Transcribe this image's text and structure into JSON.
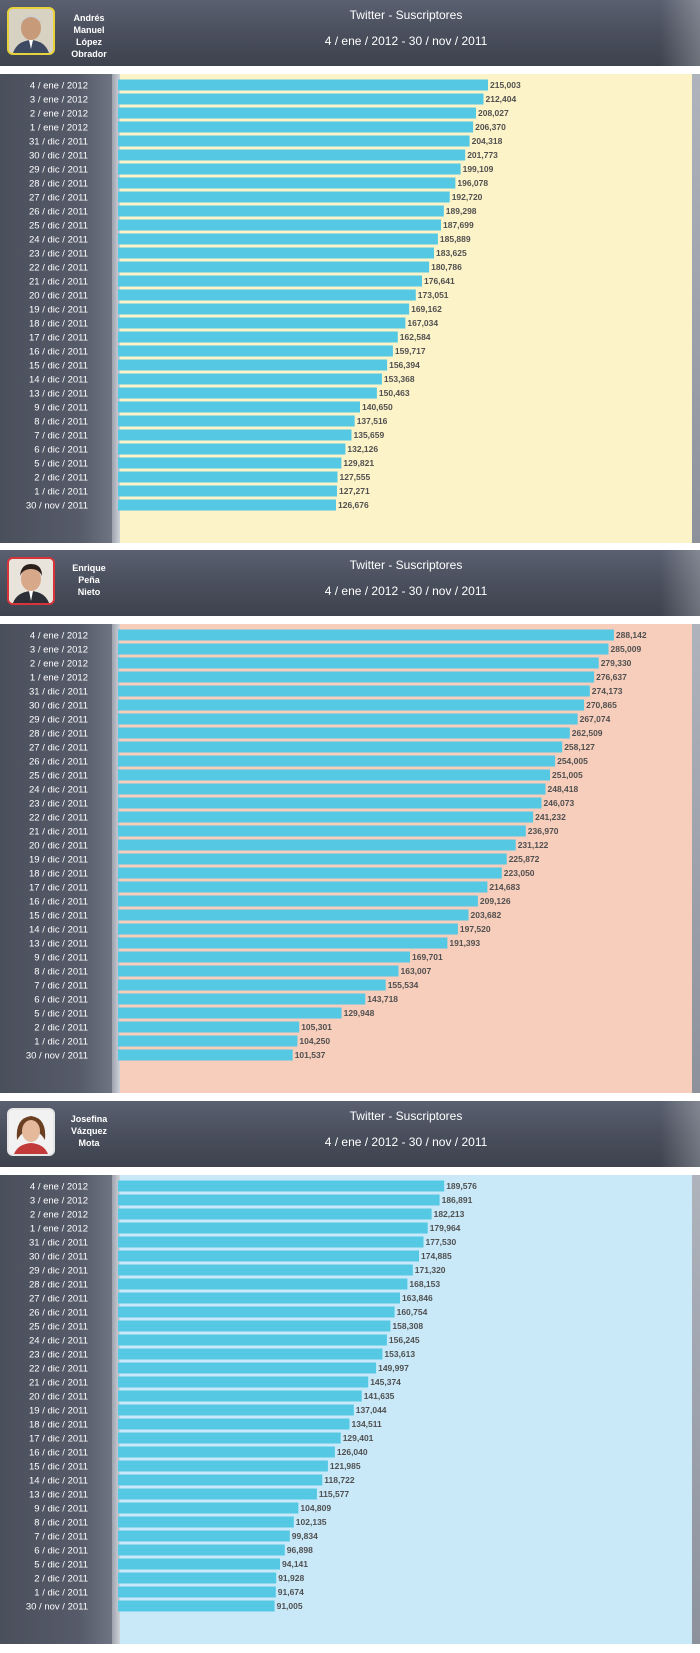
{
  "colors": {
    "bar": "#55c8e3",
    "header_bg": "#4a4f5d"
  },
  "chart_data": [
    {
      "type": "bar",
      "orientation": "horizontal",
      "candidate": "Andrés\nManuel\nLópez\nObrador",
      "title": "Twitter - Suscriptores",
      "subtitle": "4 / ene / 2012   -  30 / nov / 2011",
      "background": "#fdf3c8",
      "avatar_border": "#e8d23a",
      "avatar_icon": "portrait-photo-icon",
      "categories": [
        "4 / ene / 2012",
        "3 / ene / 2012",
        "2 / ene / 2012",
        "1 / ene / 2012",
        "31 / dic / 2011",
        "30 / dic / 2011",
        "29 / dic / 2011",
        "28 / dic / 2011",
        "27 / dic / 2011",
        "26 / dic / 2011",
        "25 / dic / 2011",
        "24 / dic / 2011",
        "23 / dic / 2011",
        "22 / dic / 2011",
        "21 / dic / 2011",
        "20 / dic / 2011",
        "19 / dic / 2011",
        "18 / dic / 2011",
        "17 / dic / 2011",
        "16 / dic / 2011",
        "15 / dic / 2011",
        "14 / dic / 2011",
        "13 / dic / 2011",
        "9 / dic / 2011",
        "8 / dic / 2011",
        "7 / dic / 2011",
        "6 / dic / 2011",
        "5 / dic / 2011",
        "2 / dic / 2011",
        "1 / dic / 2011",
        "30 / nov / 2011"
      ],
      "values": [
        215003,
        212404,
        208027,
        206370,
        204318,
        201773,
        199109,
        196078,
        192720,
        189298,
        187699,
        185889,
        183625,
        180786,
        176641,
        173051,
        169162,
        167034,
        162584,
        159717,
        156394,
        153368,
        150463,
        140650,
        137516,
        135659,
        132126,
        129821,
        127555,
        127271,
        126676
      ],
      "labels": [
        "215,003",
        "212,404",
        "208,027",
        "206,370",
        "204,318",
        "201,773",
        "199,109",
        "196,078",
        "192,720",
        "189,298",
        "187,699",
        "185,889",
        "183,625",
        "180,786",
        "176,641",
        "173,051",
        "169,162",
        "167,034",
        "162,584",
        "159,717",
        "156,394",
        "153,368",
        "150,463",
        "140,650",
        "137,516",
        "135,659",
        "132,126",
        "129,821",
        "127,555",
        "127,271",
        "126,676"
      ]
    },
    {
      "type": "bar",
      "orientation": "horizontal",
      "candidate": "Enrique\nPeña\nNieto",
      "title": "Twitter - Suscriptores",
      "subtitle": "4 / ene / 2012   -  30 / nov / 2011",
      "background": "#f7cdbb",
      "avatar_border": "#d9333a",
      "avatar_icon": "portrait-photo-icon",
      "categories": [
        "4 / ene / 2012",
        "3 / ene / 2012",
        "2 / ene / 2012",
        "1 / ene / 2012",
        "31 / dic / 2011",
        "30 / dic / 2011",
        "29 / dic / 2011",
        "28 / dic / 2011",
        "27 / dic / 2011",
        "26 / dic / 2011",
        "25 / dic / 2011",
        "24 / dic / 2011",
        "23 / dic / 2011",
        "22 / dic / 2011",
        "21 / dic / 2011",
        "20 / dic / 2011",
        "19 / dic / 2011",
        "18 / dic / 2011",
        "17 / dic / 2011",
        "16 / dic / 2011",
        "15 / dic / 2011",
        "14 / dic / 2011",
        "13 / dic / 2011",
        "9 / dic / 2011",
        "8 / dic / 2011",
        "7 / dic / 2011",
        "6 / dic / 2011",
        "5 / dic / 2011",
        "2 / dic / 2011",
        "1 / dic / 2011",
        "30 / nov / 2011"
      ],
      "values": [
        288142,
        285009,
        279330,
        276637,
        274173,
        270865,
        267074,
        262509,
        258127,
        254005,
        251005,
        248418,
        246073,
        241232,
        236970,
        231122,
        225872,
        223050,
        214683,
        209126,
        203682,
        197520,
        191393,
        169701,
        163007,
        155534,
        143718,
        129948,
        105301,
        104250,
        101537
      ],
      "labels": [
        "288,142",
        "285,009",
        "279,330",
        "276,637",
        "274,173",
        "270,865",
        "267,074",
        "262,509",
        "258,127",
        "254,005",
        "251,005",
        "248,418",
        "246,073",
        "241,232",
        "236,970",
        "231,122",
        "225,872",
        "223,050",
        "214,683",
        "209,126",
        "203,682",
        "197,520",
        "191,393",
        "169,701",
        "163,007",
        "155,534",
        "143,718",
        "129,948",
        "105,301",
        "104,250",
        "101,537"
      ]
    },
    {
      "type": "bar",
      "orientation": "horizontal",
      "candidate": "Josefina\nVázquez\nMota",
      "title": "Twitter - Suscriptores",
      "subtitle": "4 / ene / 2012   -  30 / nov / 2011",
      "background": "#c9e9f9",
      "avatar_border": "#e6e6e6",
      "avatar_icon": "portrait-photo-icon",
      "categories": [
        "4 / ene / 2012",
        "3 / ene / 2012",
        "2 / ene / 2012",
        "1 / ene / 2012",
        "31 / dic / 2011",
        "30 / dic / 2011",
        "29 / dic / 2011",
        "28 / dic / 2011",
        "27 / dic / 2011",
        "26 / dic / 2011",
        "25 / dic / 2011",
        "24 / dic / 2011",
        "23 / dic / 2011",
        "22 / dic / 2011",
        "21 / dic / 2011",
        "20 / dic / 2011",
        "19 / dic / 2011",
        "18 / dic / 2011",
        "17 / dic / 2011",
        "16 / dic / 2011",
        "15 / dic / 2011",
        "14 / dic / 2011",
        "13 / dic / 2011",
        "9 / dic / 2011",
        "8 / dic / 2011",
        "7 / dic / 2011",
        "6 / dic / 2011",
        "5 / dic / 2011",
        "2 / dic / 2011",
        "1 / dic / 2011",
        "30 / nov / 2011"
      ],
      "values": [
        189576,
        186891,
        182213,
        179964,
        177530,
        174885,
        171320,
        168153,
        163846,
        160754,
        158308,
        156245,
        153613,
        149997,
        145374,
        141635,
        137044,
        134511,
        129401,
        126040,
        121985,
        118722,
        115577,
        104809,
        102135,
        99834,
        96898,
        94141,
        91928,
        91674,
        91005
      ],
      "labels": [
        "189,576",
        "186,891",
        "182,213",
        "179,964",
        "177,530",
        "174,885",
        "171,320",
        "168,153",
        "163,846",
        "160,754",
        "158,308",
        "156,245",
        "153,613",
        "149,997",
        "145,374",
        "141,635",
        "137,044",
        "134,511",
        "129,401",
        "126,040",
        "121,985",
        "118,722",
        "115,577",
        "104,809",
        "102,135",
        "99,834",
        "96,898",
        "94,141",
        "91,928",
        "91,674",
        "91,005"
      ]
    }
  ]
}
